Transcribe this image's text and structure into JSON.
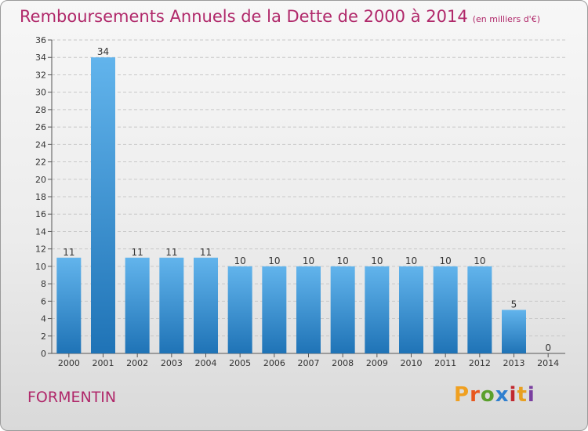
{
  "header": {
    "title": "Remboursements Annuels de la Dette de 2000 à 2014",
    "unit": "(en milliers d'€)"
  },
  "footer": {
    "commune": "FORMENTIN",
    "logo_text": "Proxiti"
  },
  "colors": {
    "title": "#b0286a",
    "bar_light": "#62b4ec",
    "bar_dark": "#1f73b6",
    "logo": [
      "#f0a020",
      "#e8571e",
      "#5aa02c",
      "#2f7fcf",
      "#c1282e",
      "#e8a020",
      "#7a3fa0"
    ]
  },
  "chart_data": {
    "type": "bar",
    "title": "Remboursements Annuels de la Dette de 2000 à 2014",
    "xlabel": "",
    "ylabel": "",
    "categories": [
      "2000",
      "2001",
      "2002",
      "2003",
      "2004",
      "2005",
      "2006",
      "2007",
      "2008",
      "2009",
      "2010",
      "2011",
      "2012",
      "2013",
      "2014"
    ],
    "values": [
      11,
      34,
      11,
      11,
      11,
      10,
      10,
      10,
      10,
      10,
      10,
      10,
      10,
      5,
      0
    ],
    "data_labels": [
      "11",
      "34",
      "11",
      "11",
      "11",
      "10",
      "10",
      "10",
      "10",
      "10",
      "10",
      "10",
      "10",
      "5",
      "0"
    ],
    "ylim": [
      0,
      36
    ],
    "yticks": [
      0,
      2,
      4,
      6,
      8,
      10,
      12,
      14,
      16,
      18,
      20,
      22,
      24,
      26,
      28,
      30,
      32,
      34,
      36
    ],
    "grid": true,
    "legend": "none"
  }
}
